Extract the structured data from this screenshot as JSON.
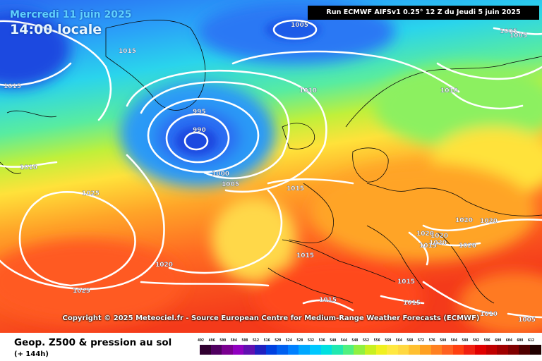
{
  "header": {
    "date": "Mercredi 11 juin 2025",
    "local_time": "14:00 locale",
    "run_info": "Run ECMWF AIFSv1 0.25° 12 Z du Jeudi 5 juin 2025"
  },
  "map": {
    "isobar_labels": [
      "1015",
      "1015",
      "1005",
      "1005",
      "1005",
      "1010",
      "1010",
      "995",
      "990",
      "1000",
      "1005",
      "1010",
      "1015",
      "1025",
      "1020",
      "1025",
      "1015",
      "1015",
      "1015",
      "1015",
      "1020",
      "1020",
      "1020",
      "1020",
      "1020",
      "1020",
      "1015",
      "1010",
      "1005"
    ],
    "copyright": "Copyright © 2025 Meteociel.fr - Source European Centre for Medium-Range Weather Forecasts (ECMWF)",
    "isobar_color": "#ffffff"
  },
  "footer": {
    "field_title": "Geop. Z500 & pression au sol",
    "lead_time": "(+ 144h)"
  },
  "legend": {
    "values": [
      "492",
      "496",
      "500",
      "504",
      "508",
      "512",
      "516",
      "520",
      "524",
      "528",
      "532",
      "536",
      "540",
      "544",
      "548",
      "552",
      "556",
      "560",
      "564",
      "568",
      "572",
      "576",
      "580",
      "584",
      "588",
      "592",
      "596",
      "600",
      "604",
      "608",
      "612"
    ],
    "colors": [
      "#300030",
      "#500060",
      "#7a0090",
      "#9000c0",
      "#6010b0",
      "#2020c0",
      "#0040e0",
      "#0060f0",
      "#0080ff",
      "#00a8ff",
      "#00c8ff",
      "#00e0e0",
      "#20e8b0",
      "#50f080",
      "#90f040",
      "#c8f020",
      "#f0f020",
      "#ffe840",
      "#ffd840",
      "#ffc030",
      "#ffa020",
      "#ff8020",
      "#ff6020",
      "#ff4010",
      "#f02010",
      "#e00000",
      "#c00000",
      "#a00000",
      "#800000",
      "#500000",
      "#200000"
    ]
  }
}
